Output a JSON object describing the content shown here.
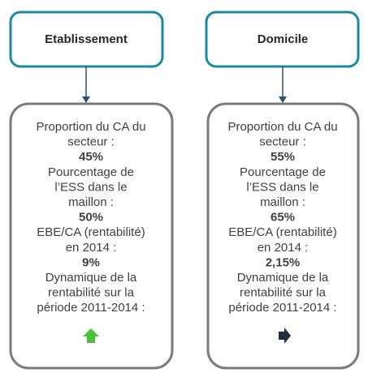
{
  "columns": [
    {
      "title": "Etablissement",
      "metrics": [
        {
          "label_lines": [
            "Proportion du CA du",
            "secteur :"
          ],
          "value": "45%"
        },
        {
          "label_lines": [
            "Pourcentage de",
            "l’ESS dans le",
            "maillon :"
          ],
          "value": "50%"
        },
        {
          "label_lines": [
            "EBE/CA (rentabilité)",
            "en 2014 :"
          ],
          "value": "9%"
        },
        {
          "label_lines": [
            "Dynamique de la",
            "rentabilité sur la",
            "période 2011-2014 :"
          ]
        }
      ]
    },
    {
      "title": "Domicile",
      "metrics": [
        {
          "label_lines": [
            "Proportion du CA du",
            "secteur :"
          ],
          "value": "55%"
        },
        {
          "label_lines": [
            "Pourcentage de",
            "l’ESS dans le",
            "maillon :"
          ],
          "value": "65%"
        },
        {
          "label_lines": [
            "EBE/CA (rentabilité)",
            "en 2014 :"
          ],
          "value": "2,15%"
        },
        {
          "label_lines": [
            "Dynamique de la",
            "rentabilité sur la",
            "période 2011-2014 :"
          ]
        }
      ]
    }
  ]
}
